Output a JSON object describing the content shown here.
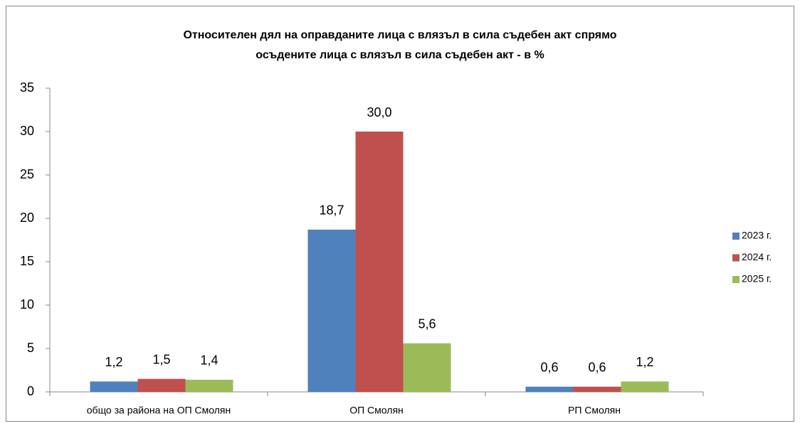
{
  "chart_data": {
    "type": "bar",
    "title": [
      "Относителен дял на оправданите лица с влязъл в сила съдебен акт спрямо",
      "осъдените лица с влязъл в сила съдебен акт - в %"
    ],
    "categories": [
      "общо за района на ОП Смолян",
      "ОП Смолян",
      "РП Смолян"
    ],
    "series": [
      {
        "name": "2023 г.",
        "color": "#4f81bd",
        "values": [
          1.2,
          18.7,
          0.6
        ],
        "value_labels": [
          "1,2",
          "18,7",
          "0,6"
        ]
      },
      {
        "name": "2024 г.",
        "color": "#c0504d",
        "values": [
          1.5,
          30.0,
          0.6
        ],
        "value_labels": [
          "1,5",
          "30,0",
          "0,6"
        ]
      },
      {
        "name": "2025 г.",
        "color": "#9bbb59",
        "values": [
          1.4,
          5.6,
          1.2
        ],
        "value_labels": [
          "1,4",
          "5,6",
          "1,2"
        ]
      }
    ],
    "ylim": [
      0,
      35
    ],
    "yticks": [
      0,
      5,
      10,
      15,
      20,
      25,
      30,
      35
    ],
    "grid": false,
    "legend": "right"
  }
}
